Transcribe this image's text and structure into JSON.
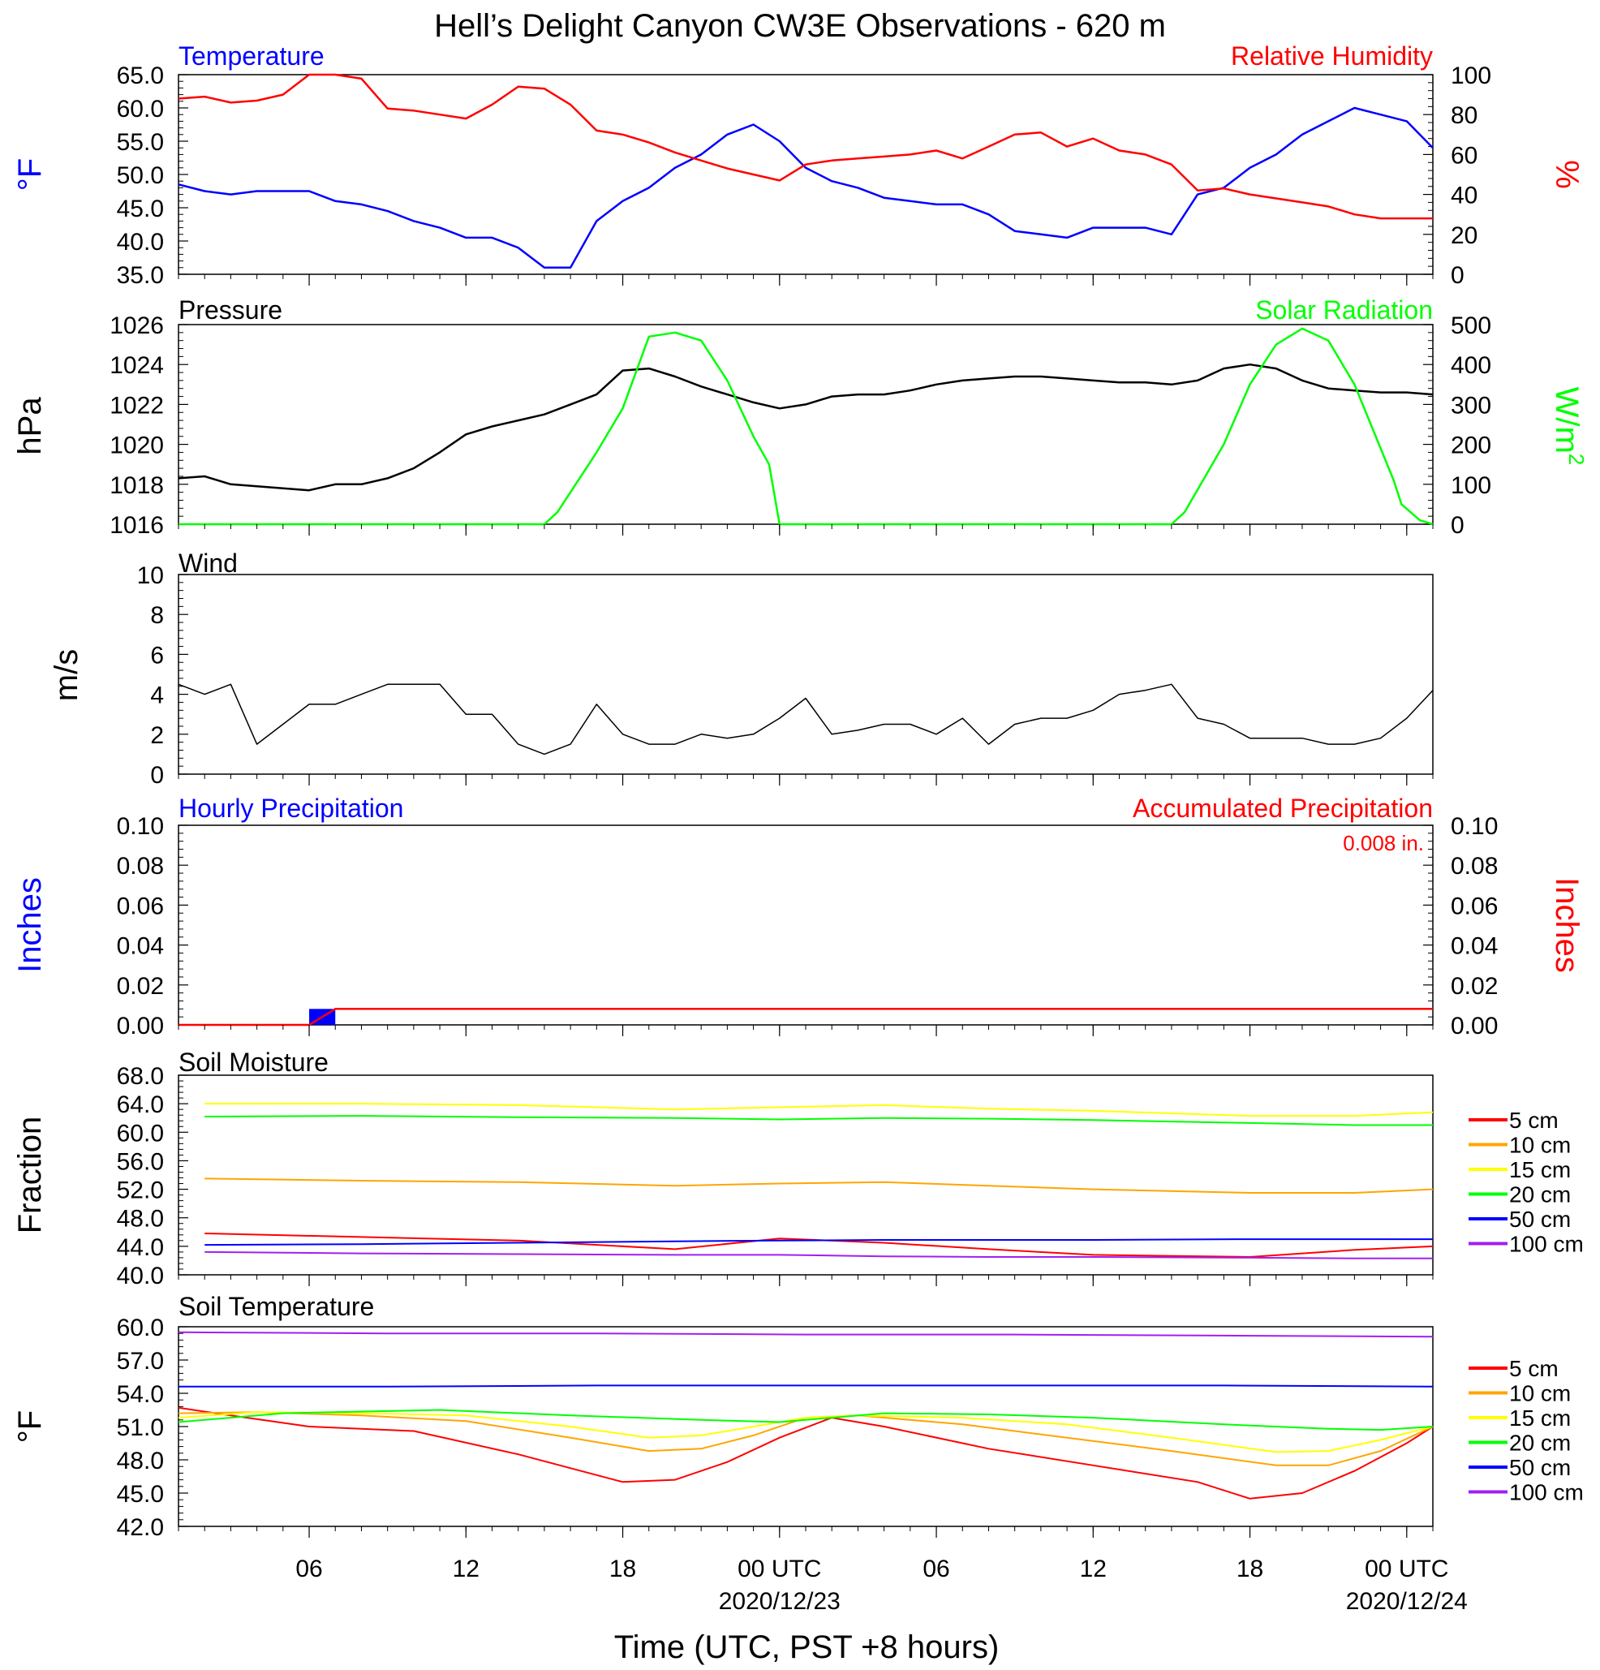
{
  "title": "Hell’s Delight Canyon CW3E Observations - 620 m",
  "x_axis": {
    "label": "Time (UTC, PST +8 hours)",
    "range_hours": [
      0,
      48
    ],
    "ticks": [
      {
        "h": 5,
        "label": "06",
        "date": ""
      },
      {
        "h": 11,
        "label": "12",
        "date": ""
      },
      {
        "h": 17,
        "label": "18",
        "date": ""
      },
      {
        "h": 23,
        "label": "00 UTC",
        "date": "2020/12/23"
      },
      {
        "h": 29,
        "label": "06",
        "date": ""
      },
      {
        "h": 35,
        "label": "12",
        "date": ""
      },
      {
        "h": 41,
        "label": "18",
        "date": ""
      },
      {
        "h": 47,
        "label": "00 UTC",
        "date": "2020/12/24"
      }
    ]
  },
  "panels": {
    "temperature": {
      "left_title": "Temperature",
      "right_title": "Relative Humidity",
      "left_ylabel": "°F",
      "right_ylabel": "%",
      "left_ticks": [
        "65.0",
        "60.0",
        "55.0",
        "50.0",
        "45.0",
        "40.0",
        "35.0"
      ],
      "right_ticks": [
        "100",
        "80",
        "60",
        "40",
        "20",
        "0"
      ],
      "left_color": "#0000ff",
      "right_color": "#ff0000"
    },
    "pressure": {
      "left_title": "Pressure",
      "right_title": "Solar Radiation",
      "left_ylabel": "hPa",
      "right_ylabel": "W/m",
      "left_ticks": [
        "1026",
        "1024",
        "1022",
        "1020",
        "1018",
        "1016"
      ],
      "right_ticks": [
        "500",
        "400",
        "300",
        "200",
        "100",
        "0"
      ],
      "left_color": "#000000",
      "right_color": "#00ff00"
    },
    "wind": {
      "left_title": "Wind",
      "left_ylabel": "m/s",
      "left_ticks": [
        "10",
        "8",
        "6",
        "4",
        "2",
        "0"
      ],
      "barb_color": "#ff0000"
    },
    "precip": {
      "left_title": "Hourly Precipitation",
      "right_title": "Accumulated Precipitation",
      "total_label": "0.008 in.",
      "left_ylabel": "Inches",
      "right_ylabel": "Inches",
      "left_ticks": [
        "0.10",
        "0.08",
        "0.06",
        "0.04",
        "0.02",
        "0.00"
      ],
      "right_ticks": [
        "0.10",
        "0.08",
        "0.06",
        "0.04",
        "0.02",
        "0.00"
      ],
      "left_color": "#0000ff",
      "right_color": "#ff0000"
    },
    "soil_moisture": {
      "left_title": "Soil Moisture",
      "left_ylabel": "Fraction",
      "left_ticks": [
        "68.0",
        "64.0",
        "60.0",
        "56.0",
        "52.0",
        "48.0",
        "44.0",
        "40.0"
      ]
    },
    "soil_temp": {
      "left_title": "Soil Temperature",
      "left_ylabel": "°F",
      "left_ticks": [
        "60.0",
        "57.0",
        "54.0",
        "51.0",
        "48.0",
        "45.0",
        "42.0"
      ]
    }
  },
  "legend": [
    {
      "label": "5 cm",
      "color": "#ff0000"
    },
    {
      "label": "10 cm",
      "color": "#ffa500"
    },
    {
      "label": "15 cm",
      "color": "#ffff00"
    },
    {
      "label": "20 cm",
      "color": "#00ff00"
    },
    {
      "label": "50 cm",
      "color": "#0000ff"
    },
    {
      "label": "100 cm",
      "color": "#a020f0"
    }
  ],
  "chart_data": [
    {
      "type": "line",
      "panel": "temperature",
      "ylim_left": [
        35,
        65
      ],
      "ylim_right": [
        0,
        100
      ],
      "xlim": [
        0,
        48
      ],
      "series": [
        {
          "name": "Temperature",
          "axis": "left",
          "color": "#0000ff",
          "x": [
            0,
            1,
            2,
            3,
            4,
            5,
            6,
            7,
            8,
            9,
            10,
            11,
            12,
            13,
            14,
            15,
            16,
            17,
            18,
            19,
            20,
            21,
            22,
            23,
            24,
            25,
            26,
            27,
            28,
            29,
            30,
            31,
            32,
            33,
            34,
            35,
            36,
            37,
            38,
            39,
            40,
            41,
            42,
            43,
            44,
            45,
            46,
            47,
            48
          ],
          "y": [
            48.5,
            47.5,
            47,
            47.5,
            47.5,
            47.5,
            46,
            45.5,
            44.5,
            43,
            42,
            40.5,
            40.5,
            39,
            36,
            36,
            43,
            46,
            48,
            51,
            53,
            56,
            57.5,
            55,
            51,
            49,
            48,
            46.5,
            46,
            45.5,
            45.5,
            44,
            41.5,
            41,
            40.5,
            42,
            42,
            42,
            41,
            47,
            48,
            51,
            53,
            56,
            58,
            60,
            59,
            58,
            54
          ]
        },
        {
          "name": "Relative Humidity",
          "axis": "right",
          "color": "#ff0000",
          "x": [
            0,
            1,
            2,
            3,
            4,
            5,
            6,
            7,
            8,
            9,
            10,
            11,
            12,
            13,
            14,
            15,
            16,
            17,
            18,
            19,
            20,
            21,
            22,
            23,
            24,
            25,
            26,
            27,
            28,
            29,
            30,
            31,
            32,
            33,
            34,
            35,
            36,
            37,
            38,
            39,
            40,
            41,
            42,
            43,
            44,
            45,
            46,
            47,
            48
          ],
          "y": [
            88,
            89,
            86,
            87,
            90,
            100,
            100,
            98,
            83,
            82,
            80,
            78,
            85,
            94,
            93,
            85,
            72,
            70,
            66,
            61,
            57,
            53,
            50,
            47,
            55,
            57,
            58,
            59,
            60,
            62,
            58,
            64,
            70,
            71,
            64,
            68,
            62,
            60,
            55,
            42,
            43,
            40,
            38,
            36,
            34,
            30,
            28,
            28,
            28
          ]
        }
      ]
    },
    {
      "type": "line",
      "panel": "pressure",
      "ylim_left": [
        1016,
        1026
      ],
      "ylim_right": [
        0,
        500
      ],
      "xlim": [
        0,
        48
      ],
      "series": [
        {
          "name": "Pressure",
          "axis": "left",
          "color": "#000000",
          "x": [
            0,
            1,
            2,
            3,
            4,
            5,
            6,
            7,
            8,
            9,
            10,
            11,
            12,
            13,
            14,
            15,
            16,
            17,
            18,
            19,
            20,
            21,
            22,
            23,
            24,
            25,
            26,
            27,
            28,
            29,
            30,
            31,
            32,
            33,
            34,
            35,
            36,
            37,
            38,
            39,
            40,
            41,
            42,
            43,
            44,
            45,
            46,
            47,
            48
          ],
          "y": [
            1018.3,
            1018.4,
            1018,
            1017.9,
            1017.8,
            1017.7,
            1018,
            1018,
            1018.3,
            1018.8,
            1019.6,
            1020.5,
            1020.9,
            1021.2,
            1021.5,
            1022,
            1022.5,
            1023.7,
            1023.8,
            1023.4,
            1022.9,
            1022.5,
            1022.1,
            1021.8,
            1022,
            1022.4,
            1022.5,
            1022.5,
            1022.7,
            1023,
            1023.2,
            1023.3,
            1023.4,
            1023.4,
            1023.3,
            1023.2,
            1023.1,
            1023.1,
            1023,
            1023.2,
            1023.8,
            1024,
            1023.8,
            1023.2,
            1022.8,
            1022.7,
            1022.6,
            1022.6,
            1022.5
          ]
        },
        {
          "name": "Solar Radiation",
          "axis": "right",
          "color": "#00ff00",
          "x": [
            0,
            14,
            14.5,
            16,
            17,
            18,
            19,
            20,
            21,
            22,
            22.6,
            23,
            24,
            38,
            38.5,
            40,
            41,
            42,
            43,
            44,
            45,
            46,
            46.5,
            46.8,
            47.5,
            48
          ],
          "y": [
            0,
            0,
            30,
            180,
            290,
            470,
            480,
            460,
            360,
            220,
            150,
            0,
            0,
            0,
            30,
            200,
            350,
            450,
            490,
            460,
            350,
            190,
            110,
            50,
            10,
            0
          ]
        }
      ]
    },
    {
      "type": "line",
      "panel": "wind",
      "ylim": [
        0,
        10
      ],
      "xlim": [
        0,
        48
      ],
      "series": [
        {
          "name": "Wind",
          "color": "#000000",
          "x": [
            0,
            1,
            2,
            3,
            4,
            5,
            6,
            7,
            8,
            9,
            10,
            11,
            12,
            13,
            14,
            15,
            16,
            17,
            18,
            19,
            20,
            21,
            22,
            23,
            24,
            25,
            26,
            27,
            28,
            29,
            30,
            31,
            32,
            33,
            34,
            35,
            36,
            37,
            38,
            39,
            40,
            41,
            42,
            43,
            44,
            45,
            46,
            47,
            48
          ],
          "y": [
            4.5,
            4,
            4.5,
            1.5,
            2.5,
            3.5,
            3.5,
            4,
            4.5,
            4.5,
            4.5,
            3,
            3,
            1.5,
            1,
            1.5,
            3.5,
            2,
            1.5,
            1.5,
            2,
            1.8,
            2,
            2.8,
            3.8,
            2,
            2.2,
            2.5,
            2.5,
            2,
            2.8,
            1.5,
            2.5,
            2.8,
            2.8,
            3.2,
            4,
            4.2,
            4.5,
            2.8,
            2.5,
            1.8,
            1.8,
            1.8,
            1.5,
            1.5,
            1.8,
            2.8,
            4.2
          ]
        }
      ]
    },
    {
      "type": "bar",
      "panel": "precip",
      "ylim": [
        0,
        0.1
      ],
      "xlim": [
        0,
        48
      ],
      "series": [
        {
          "name": "Hourly Precipitation",
          "color": "#0000ff",
          "x": [
            5
          ],
          "values": [
            0.008
          ]
        },
        {
          "name": "Accumulated Precipitation",
          "color": "#ff0000",
          "x": [
            0,
            5,
            6,
            48
          ],
          "values": [
            0,
            0,
            0.008,
            0.008
          ]
        }
      ]
    },
    {
      "type": "line",
      "panel": "soil_moisture",
      "ylim": [
        40,
        68
      ],
      "xlim": [
        0,
        48
      ],
      "x": [
        1,
        7,
        13,
        19,
        23,
        27,
        31,
        35,
        41,
        45,
        48
      ],
      "series": [
        {
          "name": "5 cm",
          "color": "#ff0000",
          "values": [
            45.8,
            45.3,
            44.8,
            43.6,
            45.1,
            44.5,
            43.6,
            42.8,
            42.5,
            43.5,
            44.0
          ]
        },
        {
          "name": "10 cm",
          "color": "#ffa500",
          "values": [
            53.5,
            53.2,
            53.0,
            52.5,
            52.8,
            53.0,
            52.5,
            52.0,
            51.5,
            51.5,
            52.0
          ]
        },
        {
          "name": "15 cm",
          "color": "#ffff00",
          "values": [
            64.0,
            64.0,
            63.8,
            63.2,
            63.5,
            63.8,
            63.3,
            63.0,
            62.3,
            62.3,
            62.8
          ]
        },
        {
          "name": "20 cm",
          "color": "#00ff00",
          "values": [
            62.2,
            62.3,
            62.1,
            62.0,
            61.8,
            62.0,
            61.9,
            61.7,
            61.3,
            61.0,
            61.0
          ]
        },
        {
          "name": "50 cm",
          "color": "#0000ff",
          "values": [
            44.2,
            44.3,
            44.5,
            44.7,
            44.8,
            44.9,
            44.9,
            44.9,
            45.0,
            45.0,
            45.0
          ]
        },
        {
          "name": "100 cm",
          "color": "#a020f0",
          "values": [
            43.2,
            43.0,
            42.9,
            42.8,
            42.8,
            42.6,
            42.5,
            42.5,
            42.4,
            42.3,
            42.3
          ]
        }
      ]
    },
    {
      "type": "line",
      "panel": "soil_temp",
      "ylim": [
        42,
        60
      ],
      "xlim": [
        0,
        48
      ],
      "series": [
        {
          "name": "5 cm",
          "color": "#ff0000",
          "x": [
            0,
            2,
            5,
            9,
            13,
            17,
            19,
            21,
            23,
            25,
            27,
            31,
            35,
            39,
            41,
            43,
            45,
            47,
            48
          ],
          "y": [
            52.7,
            52,
            51,
            50.6,
            48.5,
            46,
            46.2,
            47.8,
            50,
            51.8,
            51,
            49,
            47.5,
            46,
            44.5,
            45,
            47,
            49.5,
            51
          ]
        },
        {
          "name": "10 cm",
          "color": "#ffa500",
          "x": [
            0,
            3,
            7,
            11,
            15,
            18,
            20,
            22,
            24,
            26,
            30,
            34,
            38,
            42,
            44,
            46,
            48
          ],
          "y": [
            52.2,
            52.3,
            52,
            51.5,
            50,
            48.8,
            49,
            50.2,
            51.8,
            52,
            51.2,
            50,
            48.8,
            47.5,
            47.5,
            48.8,
            51
          ]
        },
        {
          "name": "15 cm",
          "color": "#ffff00",
          "x": [
            0,
            3,
            7,
            11,
            15,
            18,
            20,
            22,
            24,
            26,
            30,
            34,
            38,
            42,
            44,
            46,
            48
          ],
          "y": [
            51.8,
            52.3,
            52.2,
            52,
            51,
            50,
            50.2,
            51,
            51.8,
            52,
            51.8,
            51.2,
            50,
            48.7,
            48.8,
            49.8,
            51
          ]
        },
        {
          "name": "20 cm",
          "color": "#00ff00",
          "x": [
            0,
            4,
            10,
            15,
            20,
            23,
            27,
            31,
            35,
            40,
            44,
            46,
            48
          ],
          "y": [
            51.4,
            52.2,
            52.5,
            52,
            51.6,
            51.4,
            52.2,
            52.1,
            51.8,
            51.2,
            50.8,
            50.7,
            51
          ]
        },
        {
          "name": "50 cm",
          "color": "#0000ff",
          "x": [
            0,
            8,
            16,
            24,
            32,
            40,
            48
          ],
          "y": [
            54.6,
            54.6,
            54.7,
            54.7,
            54.7,
            54.7,
            54.6
          ]
        },
        {
          "name": "100 cm",
          "color": "#a020f0",
          "x": [
            0,
            8,
            16,
            24,
            32,
            40,
            48
          ],
          "y": [
            59.5,
            59.4,
            59.4,
            59.3,
            59.3,
            59.2,
            59.1
          ]
        }
      ]
    }
  ]
}
